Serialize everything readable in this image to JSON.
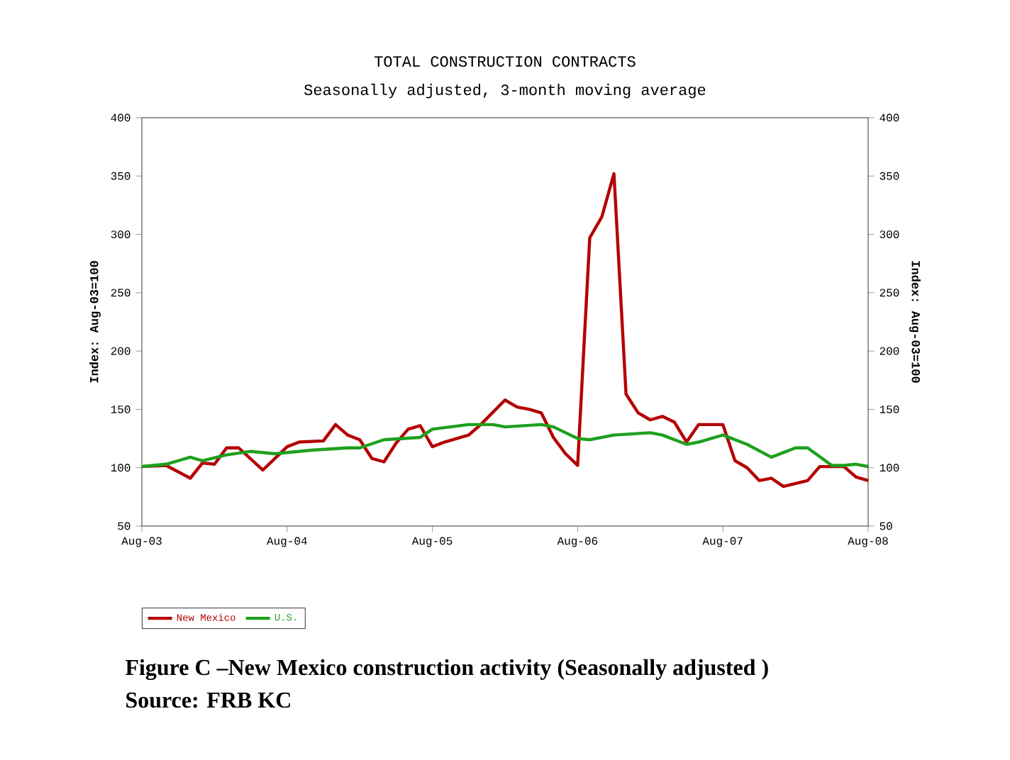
{
  "chart_data": {
    "type": "line",
    "title": "TOTAL CONSTRUCTION CONTRACTS",
    "subtitle": "Seasonally adjusted, 3-month moving average",
    "ylabel": "Index: Aug-03=100",
    "y2label": "Index: Aug-03=100",
    "xlim": [
      "2003-08",
      "2008-08"
    ],
    "xticks": [
      {
        "value": "2003-08",
        "label": "Aug-03"
      },
      {
        "value": "2004-08",
        "label": "Aug-04"
      },
      {
        "value": "2005-08",
        "label": "Aug-05"
      },
      {
        "value": "2006-08",
        "label": "Aug-06"
      },
      {
        "value": "2007-08",
        "label": "Aug-07"
      },
      {
        "value": "2008-08",
        "label": "Aug-08"
      }
    ],
    "ylim": [
      50,
      400
    ],
    "yticks": [
      50,
      100,
      150,
      200,
      250,
      300,
      350,
      400
    ],
    "y2lim": [
      50,
      400
    ],
    "y2ticks": [
      50,
      100,
      150,
      200,
      250,
      300,
      350,
      400
    ],
    "grid": false,
    "legend": "bottom",
    "marker": "none",
    "line_style": "solid",
    "series": [
      {
        "name": "New Mexico",
        "color": "#b40000",
        "x": [
          "2003-08",
          "2003-10",
          "2003-12",
          "2004-01",
          "2004-02",
          "2004-03",
          "2004-04",
          "2004-06",
          "2004-08",
          "2004-09",
          "2004-11",
          "2004-12",
          "2005-01",
          "2005-02",
          "2005-03",
          "2005-04",
          "2005-05",
          "2005-06",
          "2005-07",
          "2005-08",
          "2005-09",
          "2005-11",
          "2005-12",
          "2006-02",
          "2006-03",
          "2006-04",
          "2006-05",
          "2006-06",
          "2006-07",
          "2006-08",
          "2006-09",
          "2006-10",
          "2006-11",
          "2006-12",
          "2007-01",
          "2007-02",
          "2007-03",
          "2007-04",
          "2007-05",
          "2007-06",
          "2007-08",
          "2007-09",
          "2007-10",
          "2007-11",
          "2007-12",
          "2008-01",
          "2008-03",
          "2008-04",
          "2008-06",
          "2008-07",
          "2008-08"
        ],
        "values": [
          101,
          102,
          91,
          104,
          103,
          117,
          117,
          98,
          118,
          122,
          123,
          137,
          128,
          124,
          108,
          105,
          121,
          133,
          136,
          118,
          122,
          128,
          137,
          158,
          152,
          150,
          147,
          126,
          112,
          102,
          297,
          315,
          352,
          163,
          147,
          141,
          144,
          139,
          122,
          137,
          137,
          106,
          100,
          89,
          91,
          84,
          89,
          101,
          101,
          92,
          89
        ]
      },
      {
        "name": "U.S.",
        "color": "#1ea01e",
        "x": [
          "2003-08",
          "2003-10",
          "2003-12",
          "2004-01",
          "2004-03",
          "2004-05",
          "2004-07",
          "2004-10",
          "2005-01",
          "2005-02",
          "2005-04",
          "2005-07",
          "2005-08",
          "2005-11",
          "2006-01",
          "2006-02",
          "2006-05",
          "2006-06",
          "2006-08",
          "2006-09",
          "2006-11",
          "2007-02",
          "2007-03",
          "2007-05",
          "2007-06",
          "2007-08",
          "2007-10",
          "2007-12",
          "2008-02",
          "2008-03",
          "2008-05",
          "2008-06",
          "2008-07",
          "2008-08"
        ],
        "values": [
          101,
          103,
          109,
          106,
          111,
          114,
          112,
          115,
          117,
          117,
          124,
          126,
          133,
          137,
          137,
          135,
          137,
          135,
          125,
          124,
          128,
          130,
          128,
          120,
          122,
          128,
          120,
          109,
          117,
          117,
          102,
          102,
          103,
          101
        ]
      }
    ],
    "annotations": [
      "Figure C –New Mexico construction activity (Seasonally adjusted )",
      "Source: FRB KC"
    ]
  }
}
